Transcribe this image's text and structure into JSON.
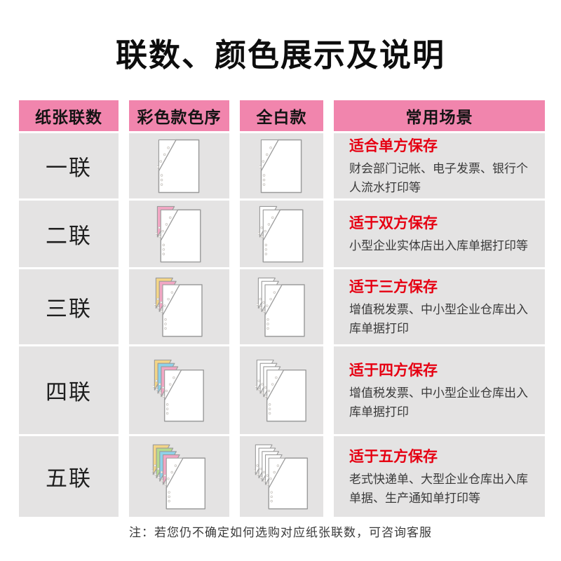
{
  "page": {
    "title": "联数、颜色展示及说明",
    "note": "注：若您仍不确定如何选购对应纸张联数，可咨询客服"
  },
  "colors": {
    "header_bg": "#f185ad",
    "row_bg": "#e4e3e3",
    "accent_red": "#e60012",
    "sheet_outline": "#9b9b9b",
    "sheet_fill": "#ffffff"
  },
  "table": {
    "headers": {
      "plies": "纸张联数",
      "color_version": "彩色款色序",
      "white_version": "全白款",
      "scenes": "常用场景"
    },
    "rows": [
      {
        "label": "一联",
        "color_layers": [
          "#ffffff"
        ],
        "white_layers": [
          "#ffffff"
        ],
        "scene_title": "适合单方保存",
        "scene_desc": "财会部门记帐、电子发票、银行个人流水打印等"
      },
      {
        "label": "二联",
        "color_layers": [
          "#f2a7c4",
          "#ffffff"
        ],
        "white_layers": [
          "#ffffff",
          "#ffffff"
        ],
        "scene_title": "适于双方保存",
        "scene_desc": "小型企业实体店出入库单据打印等"
      },
      {
        "label": "三联",
        "color_layers": [
          "#f3d587",
          "#f2a7c4",
          "#ffffff"
        ],
        "white_layers": [
          "#ffffff",
          "#ffffff",
          "#ffffff"
        ],
        "scene_title": "适于三方保存",
        "scene_desc": "增值税发票、中小型企业仓库出入库单据打印"
      },
      {
        "label": "四联",
        "color_layers": [
          "#f3d587",
          "#8ed2ea",
          "#f2a7c4",
          "#ffffff"
        ],
        "white_layers": [
          "#ffffff",
          "#ffffff",
          "#ffffff",
          "#ffffff"
        ],
        "scene_title": "适于四方保存",
        "scene_desc": "增值税发票、中小型企业仓库出入库单据打印"
      },
      {
        "label": "五联",
        "color_layers": [
          "#f3d587",
          "#b6db8e",
          "#8ed2ea",
          "#f2a7c4",
          "#ffffff"
        ],
        "white_layers": [
          "#ffffff",
          "#ffffff",
          "#ffffff",
          "#ffffff",
          "#ffffff"
        ],
        "scene_title": "适于五方保存",
        "scene_desc": "老式快递单、大型企业仓库出入库单据、生产通知单打印等"
      }
    ]
  }
}
